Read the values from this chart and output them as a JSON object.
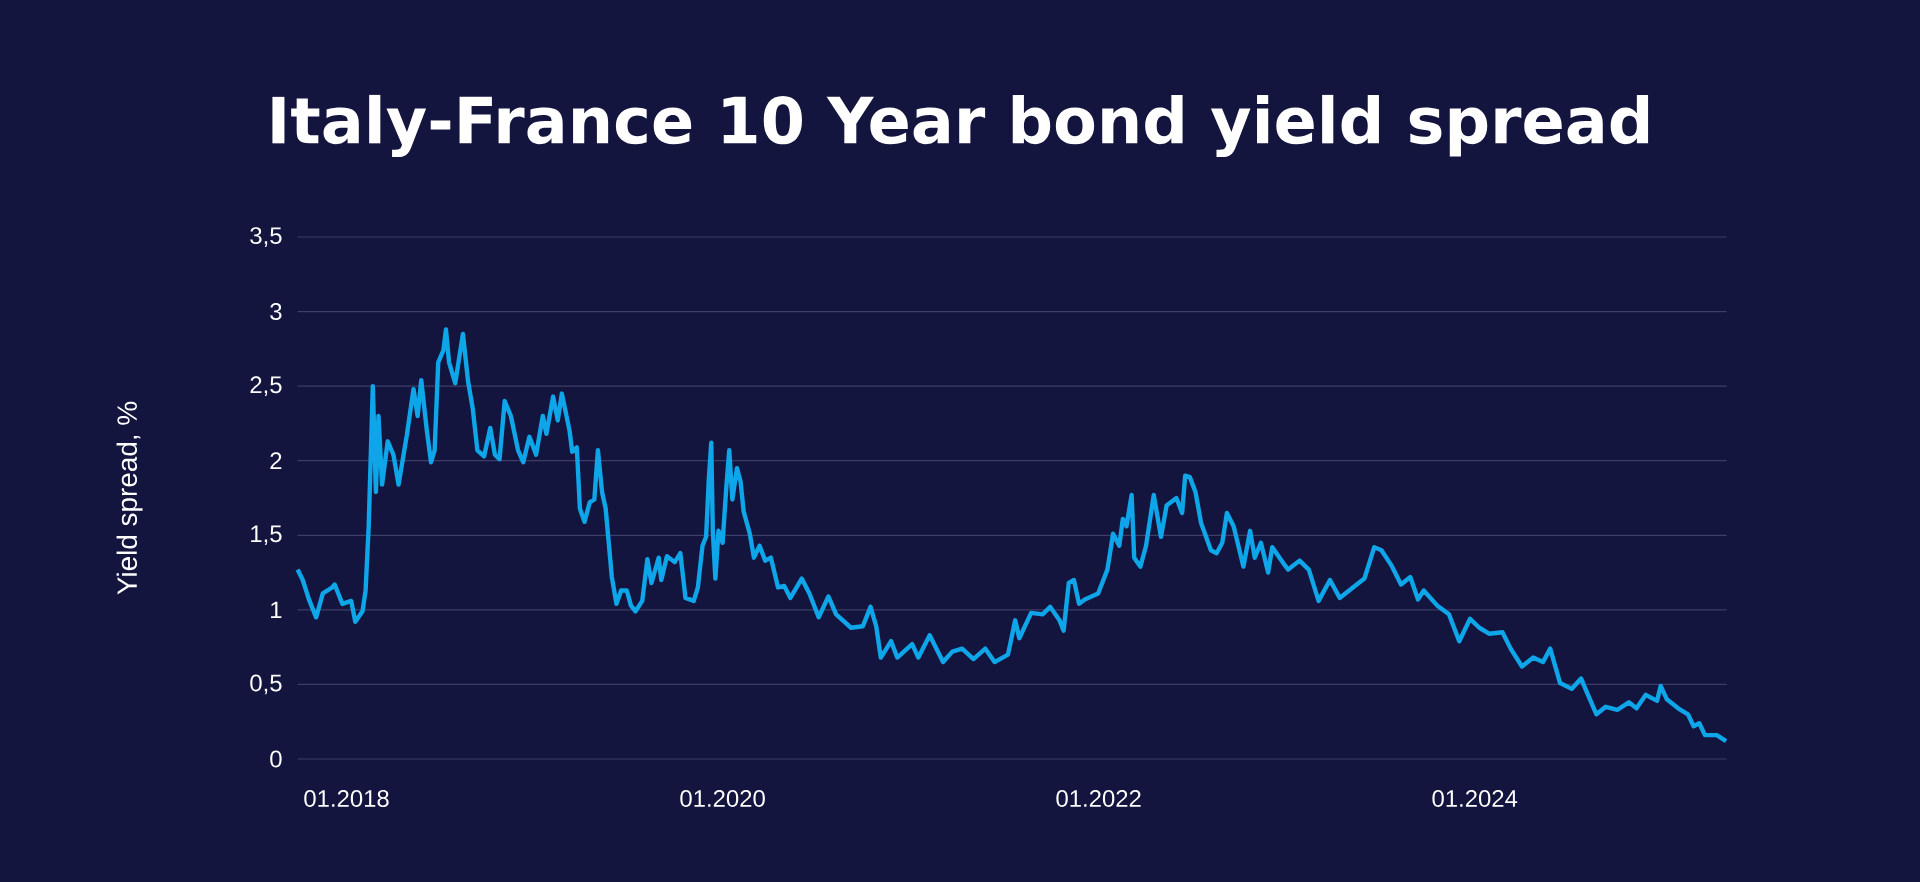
{
  "chart_data": {
    "type": "line",
    "title": "Italy-France 10 Year bond yield spread",
    "ylabel": "Yield spread, %",
    "x": [
      "2017-09-28",
      "2017-10-08",
      "2017-10-20",
      "2017-11-03",
      "2017-11-16",
      "2017-12-04",
      "2017-12-09",
      "2017-12-24",
      "2018-01-10",
      "2018-01-18",
      "2018-02-01",
      "2018-02-07",
      "2018-02-13",
      "2018-02-21",
      "2018-02-27",
      "2018-03-04",
      "2018-03-11",
      "2018-03-22",
      "2018-04-02",
      "2018-04-12",
      "2018-04-28",
      "2018-05-11",
      "2018-05-19",
      "2018-05-26",
      "2018-06-06",
      "2018-06-14",
      "2018-06-21",
      "2018-06-28",
      "2018-07-08",
      "2018-07-13",
      "2018-07-19",
      "2018-07-31",
      "2018-08-15",
      "2018-08-25",
      "2018-09-03",
      "2018-09-12",
      "2018-09-25",
      "2018-10-07",
      "2018-10-16",
      "2018-10-25",
      "2018-11-04",
      "2018-11-16",
      "2018-11-30",
      "2018-12-10",
      "2018-12-22",
      "2019-01-04",
      "2019-01-17",
      "2019-01-24",
      "2019-02-06",
      "2019-02-15",
      "2019-02-23",
      "2019-03-10",
      "2019-03-15",
      "2019-03-24",
      "2019-03-30",
      "2019-04-08",
      "2019-04-18",
      "2019-04-27",
      "2019-05-04",
      "2019-05-12",
      "2019-05-19",
      "2019-05-31",
      "2019-06-09",
      "2019-06-18",
      "2019-06-29",
      "2019-07-07",
      "2019-07-16",
      "2019-07-29",
      "2019-08-08",
      "2019-08-16",
      "2019-08-30",
      "2019-09-04",
      "2019-09-15",
      "2019-09-30",
      "2019-10-11",
      "2019-10-21",
      "2019-11-06",
      "2019-11-14",
      "2019-11-23",
      "2019-11-30",
      "2019-12-05",
      "2019-12-10",
      "2019-12-13",
      "2019-12-18",
      "2019-12-24",
      "2020-01-01",
      "2020-01-08",
      "2020-01-14",
      "2020-01-20",
      "2020-01-29",
      "2020-02-05",
      "2020-02-11",
      "2020-02-23",
      "2020-03-02",
      "2020-03-13",
      "2020-03-24",
      "2020-04-04",
      "2020-04-18",
      "2020-04-30",
      "2020-05-12",
      "2020-06-03",
      "2020-06-18",
      "2020-07-06",
      "2020-07-25",
      "2020-08-09",
      "2020-09-07",
      "2020-09-30",
      "2020-10-15",
      "2020-10-26",
      "2020-11-04",
      "2020-11-24",
      "2020-12-06",
      "2021-01-04",
      "2021-01-16",
      "2021-02-07",
      "2021-03-05",
      "2021-03-23",
      "2021-04-11",
      "2021-05-03",
      "2021-05-26",
      "2021-06-13",
      "2021-07-09",
      "2021-07-23",
      "2021-07-31",
      "2021-08-23",
      "2021-09-14",
      "2021-09-29",
      "2021-10-17",
      "2021-10-25",
      "2021-11-04",
      "2021-11-14",
      "2021-11-24",
      "2021-12-05",
      "2021-12-31",
      "2022-01-18",
      "2022-01-29",
      "2022-02-10",
      "2022-02-17",
      "2022-02-24",
      "2022-03-06",
      "2022-03-11",
      "2022-03-23",
      "2022-04-03",
      "2022-04-18",
      "2022-05-02",
      "2022-05-13",
      "2022-06-01",
      "2022-06-12",
      "2022-06-18",
      "2022-06-27",
      "2022-07-08",
      "2022-07-19",
      "2022-08-07",
      "2022-08-18",
      "2022-08-29",
      "2022-09-07",
      "2022-09-20",
      "2022-10-09",
      "2022-10-22",
      "2022-10-31",
      "2022-11-12",
      "2022-11-26",
      "2022-12-04",
      "2022-12-26",
      "2023-01-04",
      "2023-01-26",
      "2023-02-13",
      "2023-03-04",
      "2023-03-26",
      "2023-04-14",
      "2023-05-17",
      "2023-06-01",
      "2023-06-20",
      "2023-07-04",
      "2023-07-23",
      "2023-08-11",
      "2023-08-29",
      "2023-09-13",
      "2023-09-24",
      "2023-10-20",
      "2023-11-12",
      "2023-12-02",
      "2023-12-23",
      "2024-01-10",
      "2024-01-29",
      "2024-02-24",
      "2024-03-11",
      "2024-04-02",
      "2024-04-24",
      "2024-05-13",
      "2024-05-27",
      "2024-06-15",
      "2024-07-08",
      "2024-07-26",
      "2024-08-06",
      "2024-08-25",
      "2024-09-12",
      "2024-10-05",
      "2024-10-27",
      "2024-11-11",
      "2024-11-29",
      "2024-12-21",
      "2024-12-28",
      "2025-01-09",
      "2025-01-31",
      "2025-02-19",
      "2025-03-02",
      "2025-03-13",
      "2025-03-24",
      "2025-04-16",
      "2025-05-04"
    ],
    "series": [
      {
        "color": "#0ea5e9",
        "values": [
          1.27,
          1.2,
          1.07,
          0.95,
          1.11,
          1.15,
          1.17,
          1.04,
          1.06,
          0.92,
          0.99,
          1.13,
          1.56,
          2.5,
          1.79,
          2.3,
          1.84,
          2.13,
          2.04,
          1.84,
          2.17,
          2.48,
          2.3,
          2.54,
          2.2,
          1.99,
          2.07,
          2.66,
          2.74,
          2.88,
          2.66,
          2.52,
          2.85,
          2.53,
          2.35,
          2.07,
          2.03,
          2.22,
          2.04,
          2.01,
          2.4,
          2.3,
          2.07,
          1.99,
          2.16,
          2.04,
          2.3,
          2.18,
          2.43,
          2.27,
          2.45,
          2.2,
          2.06,
          2.09,
          1.68,
          1.59,
          1.72,
          1.74,
          2.07,
          1.79,
          1.68,
          1.22,
          1.04,
          1.13,
          1.13,
          1.03,
          0.99,
          1.06,
          1.34,
          1.18,
          1.35,
          1.2,
          1.36,
          1.32,
          1.38,
          1.08,
          1.06,
          1.15,
          1.43,
          1.49,
          1.86,
          2.12,
          1.53,
          1.21,
          1.53,
          1.45,
          1.81,
          2.07,
          1.74,
          1.95,
          1.86,
          1.66,
          1.51,
          1.35,
          1.43,
          1.33,
          1.35,
          1.15,
          1.16,
          1.08,
          1.21,
          1.11,
          0.95,
          1.09,
          0.97,
          0.88,
          0.89,
          1.02,
          0.89,
          0.68,
          0.79,
          0.68,
          0.77,
          0.68,
          0.83,
          0.65,
          0.72,
          0.74,
          0.67,
          0.74,
          0.65,
          0.7,
          0.93,
          0.81,
          0.98,
          0.97,
          1.02,
          0.93,
          0.86,
          1.18,
          1.2,
          1.04,
          1.07,
          1.11,
          1.27,
          1.51,
          1.43,
          1.61,
          1.56,
          1.77,
          1.35,
          1.29,
          1.43,
          1.77,
          1.49,
          1.7,
          1.75,
          1.65,
          1.9,
          1.89,
          1.79,
          1.58,
          1.4,
          1.38,
          1.45,
          1.65,
          1.56,
          1.29,
          1.53,
          1.35,
          1.45,
          1.25,
          1.42,
          1.31,
          1.27,
          1.33,
          1.27,
          1.06,
          1.2,
          1.08,
          1.17,
          1.21,
          1.42,
          1.4,
          1.3,
          1.17,
          1.22,
          1.07,
          1.13,
          1.03,
          0.97,
          0.79,
          0.94,
          0.88,
          0.84,
          0.85,
          0.74,
          0.62,
          0.68,
          0.65,
          0.74,
          0.51,
          0.47,
          0.54,
          0.45,
          0.3,
          0.35,
          0.33,
          0.38,
          0.34,
          0.43,
          0.39,
          0.49,
          0.4,
          0.34,
          0.3,
          0.22,
          0.24,
          0.16,
          0.16,
          0.12
        ]
      }
    ],
    "xlim": [
      "2017-09-28",
      "2025-05-05"
    ],
    "xticks": [
      {
        "value": "2018-01",
        "label": "01.2018"
      },
      {
        "value": "2020-01",
        "label": "01.2020"
      },
      {
        "value": "2022-01",
        "label": "01.2022"
      },
      {
        "value": "2024-01",
        "label": "01.2024"
      }
    ],
    "ylim": [
      0,
      3.5
    ],
    "yticks": [
      0,
      {
        "value": 0.5,
        "label": "0,5"
      },
      1,
      {
        "value": 1.5,
        "label": "1,5"
      },
      2,
      {
        "value": 2.5,
        "label": "2,5"
      },
      3,
      {
        "value": 3.5,
        "label": "3,5"
      }
    ],
    "grid": "y"
  }
}
